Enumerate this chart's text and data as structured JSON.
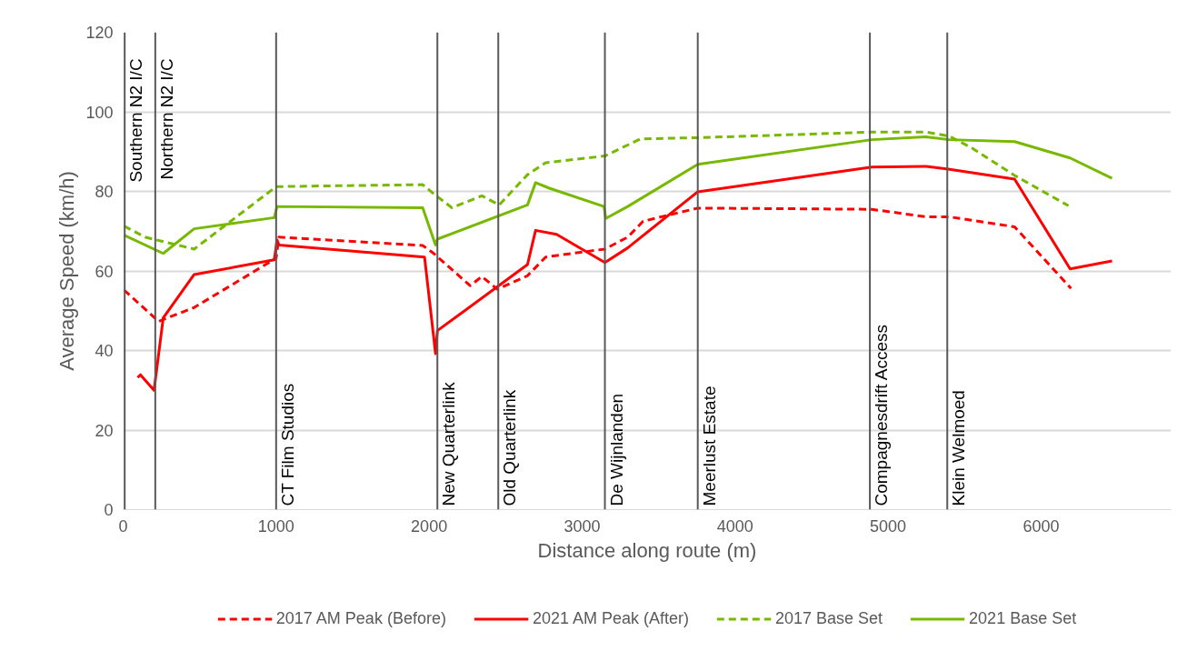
{
  "chart_data": {
    "type": "line",
    "xlabel": "Distance along route (m)",
    "ylabel": "Average Speed (km/h)",
    "xlim": [
      0,
      6850
    ],
    "ylim": [
      0,
      120
    ],
    "xticks": [
      0,
      1000,
      2000,
      3000,
      4000,
      5000,
      6000
    ],
    "yticks": [
      0,
      20,
      40,
      60,
      80,
      100,
      120
    ],
    "grid": "y",
    "legend": "bottom",
    "marker": "none",
    "series": [
      {
        "name": "2017 AM Peak (Before)",
        "color": "#ff0000",
        "line_style": "dashed",
        "x": [
          6,
          232,
          262,
          464,
          1000,
          1018,
          1958,
          2030,
          2268,
          2345,
          2446,
          2643,
          2762,
          3149,
          3298,
          3399,
          3756,
          4893,
          5250,
          5399,
          5827,
          6196
        ],
        "values": [
          55.2,
          47.3,
          47.8,
          50.8,
          63.2,
          68.5,
          66.4,
          64.4,
          56.3,
          58.6,
          55.4,
          58.8,
          63.5,
          65.5,
          68.5,
          72.5,
          75.8,
          75.5,
          73.6,
          73.6,
          71.1,
          55.6
        ]
      },
      {
        "name": "2021 AM Peak (After)",
        "color": "#ff0000",
        "line_style": "solid",
        "x": [
          95,
          113,
          202,
          262,
          464,
          988,
          1006,
          1018,
          1970,
          2042,
          2054,
          2643,
          2696,
          2833,
          3149,
          3298,
          3756,
          4893,
          5250,
          5393,
          5827,
          6190,
          6464
        ],
        "values": [
          33.2,
          33.9,
          30,
          48.2,
          59.1,
          62.8,
          67.8,
          66.5,
          63.5,
          39.2,
          45,
          61.6,
          70.2,
          69.2,
          62.1,
          65.8,
          79.9,
          86.1,
          86.3,
          85.6,
          83.1,
          60.5,
          62.5
        ]
      },
      {
        "name": "2017 Base Set",
        "color": "#77b900",
        "line_style": "dashed",
        "x": [
          6,
          143,
          464,
          1000,
          1958,
          2030,
          2149,
          2345,
          2458,
          2643,
          2762,
          3149,
          3381,
          3756,
          4893,
          5250,
          5399,
          5548,
          5827,
          6179
        ],
        "values": [
          71.3,
          68.5,
          65.5,
          81.2,
          81.7,
          79.4,
          75.9,
          78.9,
          76.6,
          84.2,
          87.2,
          88.9,
          93.2,
          93.5,
          94.9,
          94.9,
          93.9,
          90.9,
          84,
          76.4
        ]
      },
      {
        "name": "2021 Base Set",
        "color": "#77b900",
        "line_style": "solid",
        "x": [
          6,
          262,
          464,
          988,
          1006,
          1958,
          2042,
          2054,
          2643,
          2696,
          2786,
          3143,
          3155,
          3298,
          3756,
          4893,
          5244,
          5399,
          5827,
          6190,
          6464
        ],
        "values": [
          69,
          64.4,
          70.6,
          73.4,
          76.2,
          75.9,
          66.5,
          68,
          76.6,
          82.2,
          80.8,
          76.2,
          73.2,
          76.2,
          86.8,
          93,
          93.7,
          93,
          92.5,
          88.4,
          83.3
        ]
      }
    ],
    "ref_lines": [
      {
        "axis": "x",
        "value": 10,
        "label": "Southern N2 I/C",
        "color": "#595959"
      },
      {
        "axis": "x",
        "value": 210,
        "label": "Northern N2 I/C",
        "color": "#595959"
      },
      {
        "axis": "x",
        "value": 1000,
        "label": "CT Film Studios",
        "color": "#595959"
      },
      {
        "axis": "x",
        "value": 2054,
        "label": "New Quarterlink",
        "color": "#595959"
      },
      {
        "axis": "x",
        "value": 2452,
        "label": "Old Quarterlink",
        "color": "#595959"
      },
      {
        "axis": "x",
        "value": 3149,
        "label": "De Wijnlanden",
        "color": "#595959"
      },
      {
        "axis": "x",
        "value": 3756,
        "label": "Meerlust Estate",
        "color": "#595959"
      },
      {
        "axis": "x",
        "value": 4881,
        "label": "Compagnesdrift Access",
        "color": "#595959"
      },
      {
        "axis": "x",
        "value": 5387,
        "label": "Klein Welmoed",
        "color": "#595959"
      }
    ]
  }
}
